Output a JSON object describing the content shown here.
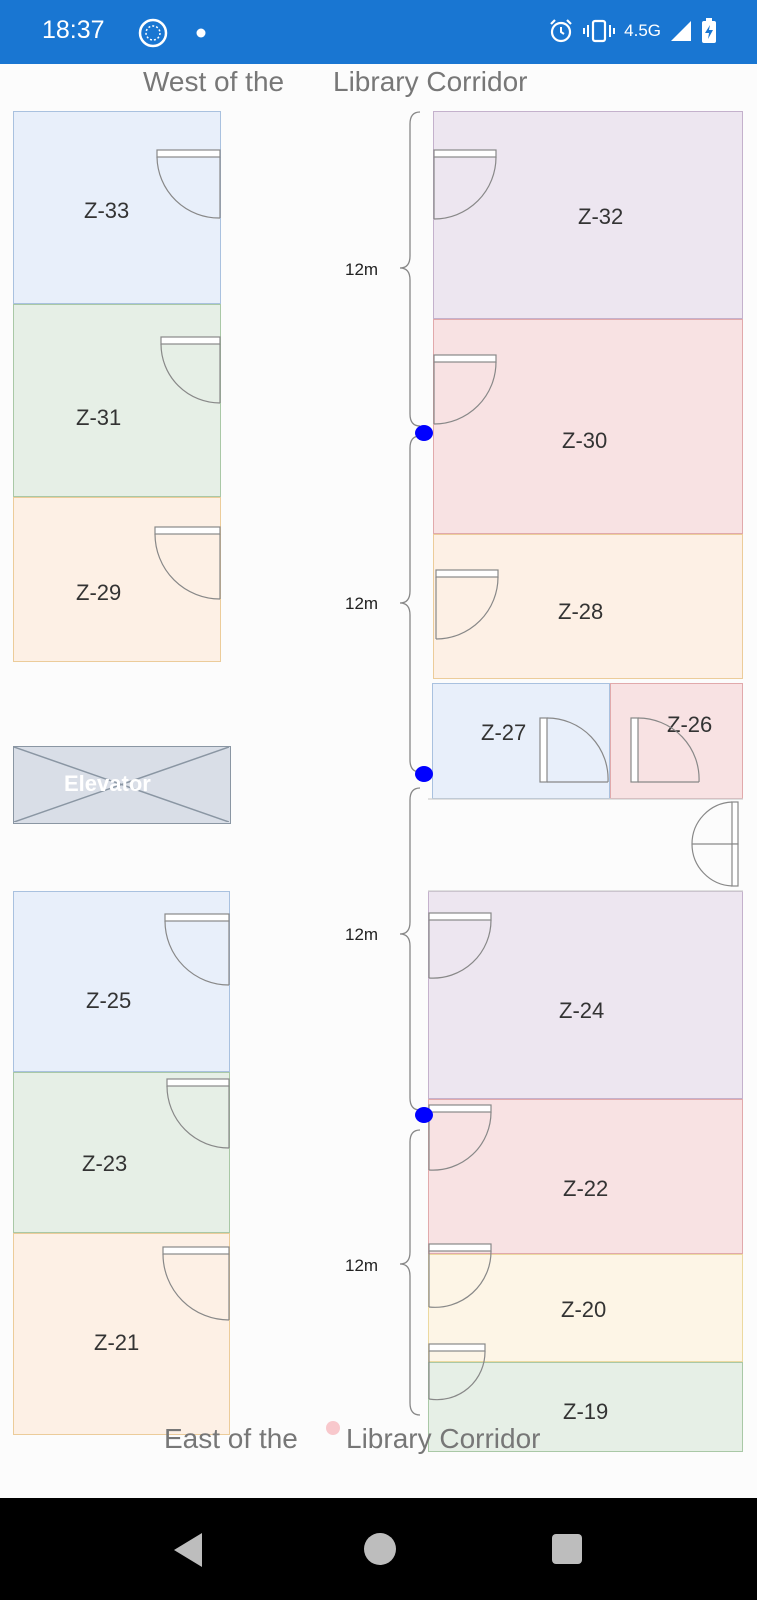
{
  "status_bar": {
    "time": "18:37",
    "network": "4.5G",
    "icons": [
      "clock-app-icon",
      "notification-dot-icon",
      "alarm-icon",
      "vibrate-icon",
      "signal-icon",
      "battery-charging-icon"
    ]
  },
  "map": {
    "top_title_left": "West of the",
    "top_title_right": "Library Corridor",
    "bottom_title_left": "East of the",
    "bottom_title_right": "Library Corridor",
    "dimension_label": "12m",
    "elevator_label": "Elevator",
    "rooms": {
      "z33": "Z-33",
      "z31": "Z-31",
      "z29": "Z-29",
      "z25": "Z-25",
      "z23": "Z-23",
      "z21": "Z-21",
      "z32": "Z-32",
      "z30": "Z-30",
      "z28": "Z-28",
      "z27": "Z-27",
      "z26": "Z-26",
      "z24": "Z-24",
      "z22": "Z-22",
      "z20": "Z-20",
      "z19": "Z-19"
    },
    "colors": {
      "blue_fill": "#e8effa",
      "blue_border": "#a9c1df",
      "green_fill": "#e6efe6",
      "green_border": "#a9c8a6",
      "orange_fill": "#fdf0e5",
      "orange_border": "#eccc9a",
      "purple_fill": "#ede6f0",
      "purple_border": "#c4b1cc",
      "red_fill": "#f8e2e3",
      "red_border": "#e1a9ab",
      "yellow_fill": "#fdf5e6",
      "yellow_border": "#ecd9a0",
      "marker": "#0000ff"
    }
  },
  "nav_bar": {
    "icons": [
      "back-icon",
      "home-icon",
      "recents-icon"
    ]
  }
}
